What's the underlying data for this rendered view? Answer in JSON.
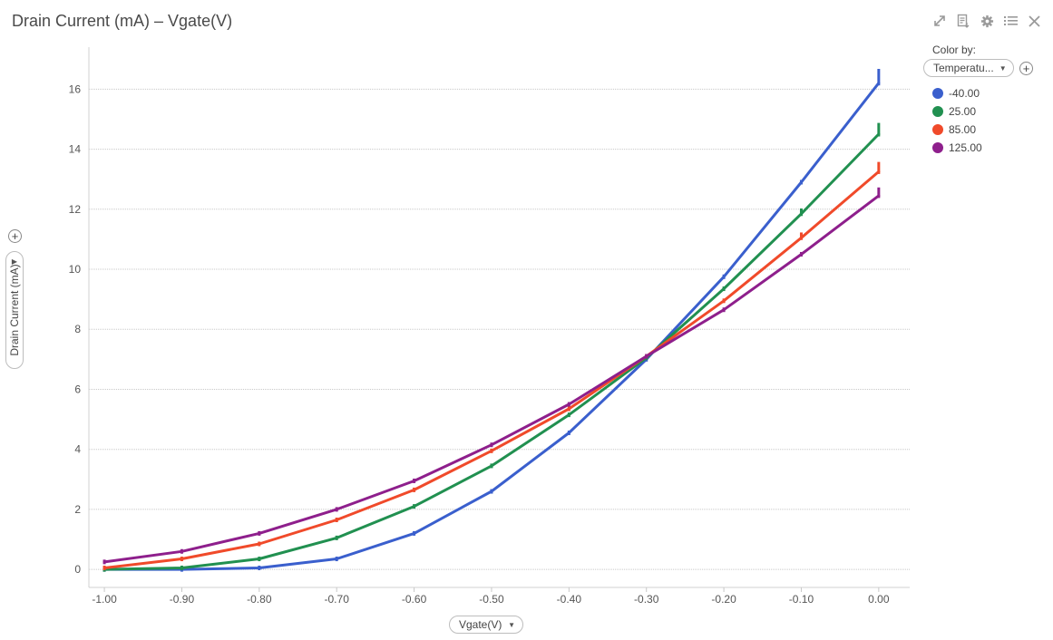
{
  "header": {
    "title": "Drain Current (mA) – Vgate(V)",
    "toolbar": [
      {
        "name": "expand-icon"
      },
      {
        "name": "export-icon"
      },
      {
        "name": "gear-icon"
      },
      {
        "name": "list-icon"
      },
      {
        "name": "close-icon"
      }
    ]
  },
  "legend": {
    "title": "Color by:",
    "selector_value": "Temperatu...",
    "items": [
      {
        "label": "-40.00",
        "color": "#3a5fcd"
      },
      {
        "label": "25.00",
        "color": "#219050"
      },
      {
        "label": "85.00",
        "color": "#f04a2a"
      },
      {
        "label": "125.00",
        "color": "#8e1f8c"
      }
    ]
  },
  "x_axis_selector": "Vgate(V)",
  "y_axis_selector": "Drain Current (mA)",
  "chart_data": {
    "type": "line",
    "title": "Drain Current (mA) – Vgate(V)",
    "xlabel": "Vgate(V)",
    "ylabel": "Drain Current (mA)",
    "xlim": [
      -1.02,
      0.04
    ],
    "ylim": [
      -0.6,
      17.4
    ],
    "xticks": [
      "-1.00",
      "-0.90",
      "-0.80",
      "-0.70",
      "-0.60",
      "-0.50",
      "-0.40",
      "-0.30",
      "-0.20",
      "-0.10",
      "0.00"
    ],
    "yticks": [
      "0",
      "2",
      "4",
      "6",
      "8",
      "10",
      "12",
      "14",
      "16"
    ],
    "grid": true,
    "legend_position": "top-right",
    "x": [
      -1.0,
      -0.9,
      -0.8,
      -0.7,
      -0.6,
      -0.5,
      -0.4,
      -0.3,
      -0.2,
      -0.1,
      0.0
    ],
    "series": [
      {
        "name": "-40.00",
        "color": "#3a5fcd",
        "values": [
          0.0,
          0.0,
          0.05,
          0.35,
          1.2,
          2.6,
          4.55,
          7.0,
          9.75,
          12.9,
          16.2
        ],
        "range": [
          0.0,
          0.0,
          0.05,
          0.35,
          1.2,
          2.6,
          4.55,
          7.0,
          9.75,
          12.9,
          16.6
        ]
      },
      {
        "name": "25.00",
        "color": "#219050",
        "values": [
          0.0,
          0.05,
          0.35,
          1.05,
          2.1,
          3.45,
          5.15,
          7.05,
          9.35,
          11.85,
          14.5
        ],
        "range": [
          0.0,
          0.05,
          0.35,
          1.05,
          2.1,
          3.45,
          5.15,
          7.05,
          9.35,
          11.95,
          14.8
        ]
      },
      {
        "name": "85.00",
        "color": "#f04a2a",
        "values": [
          0.05,
          0.35,
          0.85,
          1.65,
          2.65,
          3.95,
          5.35,
          7.1,
          8.95,
          11.05,
          13.25
        ],
        "range": [
          0.05,
          0.35,
          0.85,
          1.65,
          2.65,
          3.95,
          5.35,
          7.1,
          8.95,
          11.15,
          13.5
        ]
      },
      {
        "name": "125.00",
        "color": "#8e1f8c",
        "values": [
          0.25,
          0.6,
          1.2,
          2.0,
          2.95,
          4.15,
          5.5,
          7.1,
          8.65,
          10.5,
          12.45
        ],
        "range": [
          0.25,
          0.6,
          1.2,
          2.0,
          2.95,
          4.15,
          5.5,
          7.1,
          8.65,
          10.5,
          12.65
        ]
      }
    ]
  }
}
